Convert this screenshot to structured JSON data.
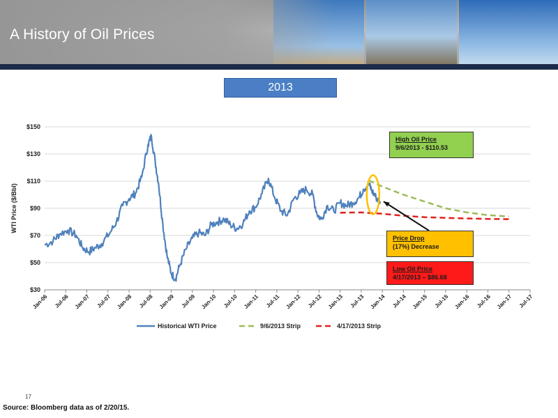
{
  "header": {
    "title": "A History of Oil Prices",
    "year_label": "2013"
  },
  "annotations": {
    "high": {
      "heading": "High Oil Price",
      "detail": "9/6/2013 - $110.53"
    },
    "drop": {
      "heading": "Price Drop",
      "detail": "(17%) Decrease"
    },
    "low": {
      "heading": "Low Oil Price",
      "detail": "4/17/2013 – $86.68"
    }
  },
  "footer": {
    "page": "17",
    "source": "Source: Bloomberg data as of 2/20/15."
  },
  "colors": {
    "historical": "#4f81bd",
    "strip_sep": "#9bbb59",
    "strip_apr": "#e0201b",
    "highlight": "#ffc000"
  },
  "chart_data": {
    "type": "line",
    "ylabel": "WTI Price ($/Bbl)",
    "ylim": [
      30,
      150
    ],
    "yticks": [
      "$30",
      "$50",
      "$70",
      "$90",
      "$110",
      "$130",
      "$150"
    ],
    "xticks": [
      "Jan-06",
      "Jul-06",
      "Jan-07",
      "Jul-07",
      "Jan-08",
      "Jul-08",
      "Jan-09",
      "Jul-09",
      "Jan-10",
      "Jul-10",
      "Jan-11",
      "Jul-11",
      "Jan-12",
      "Jul-12",
      "Jan-13",
      "Jul-13",
      "Jan-14",
      "Jul-14",
      "Jan-15",
      "Jul-15",
      "Jan-16",
      "Jul-16",
      "Jan-17",
      "Jul-17"
    ],
    "grid": true,
    "legend": "bottom",
    "series": [
      {
        "name": "Historical WTI Price",
        "style": "solid",
        "x": [
          2006.0,
          2006.2,
          2006.35,
          2006.55,
          2006.75,
          2006.9,
          2007.05,
          2007.2,
          2007.35,
          2007.55,
          2007.7,
          2007.85,
          2008.0,
          2008.15,
          2008.3,
          2008.45,
          2008.53,
          2008.62,
          2008.7,
          2008.8,
          2008.9,
          2009.0,
          2009.1,
          2009.2,
          2009.35,
          2009.5,
          2009.65,
          2009.8,
          2009.95,
          2010.1,
          2010.25,
          2010.4,
          2010.55,
          2010.7,
          2010.85,
          2011.0,
          2011.15,
          2011.3,
          2011.45,
          2011.6,
          2011.75,
          2011.9,
          2012.05,
          2012.2,
          2012.35,
          2012.45,
          2012.55,
          2012.7,
          2012.85,
          2013.0,
          2013.15,
          2013.3,
          2013.45,
          2013.55,
          2013.68,
          2013.75,
          2013.85,
          2013.95
        ],
        "y": [
          63,
          66,
          71,
          74,
          70,
          61,
          58,
          61,
          64,
          72,
          80,
          92,
          97,
          101,
          113,
          137,
          143,
          124,
          108,
          78,
          55,
          42,
          38,
          48,
          60,
          68,
          72,
          70,
          78,
          80,
          82,
          78,
          75,
          79,
          88,
          91,
          101,
          112,
          98,
          88,
          85,
          97,
          101,
          104,
          100,
          86,
          82,
          92,
          88,
          94,
          92,
          94,
          98,
          104,
          108,
          103,
          98,
          95
        ]
      },
      {
        "name": "9/6/2013 Strip",
        "style": "dash",
        "x": [
          2013.68,
          2014.0,
          2014.5,
          2015.0,
          2015.5,
          2016.0,
          2016.5,
          2017.0
        ],
        "y": [
          110.5,
          106,
          100,
          95,
          90,
          87,
          85,
          84
        ]
      },
      {
        "name": "4/17/2013 Strip",
        "style": "dash",
        "x": [
          2013.0,
          2013.5,
          2014.0,
          2014.5,
          2015.0,
          2015.5,
          2016.0,
          2016.5,
          2017.0
        ],
        "y": [
          86.7,
          87,
          86,
          84.5,
          83.5,
          83,
          82.5,
          82.2,
          82
        ]
      }
    ]
  }
}
